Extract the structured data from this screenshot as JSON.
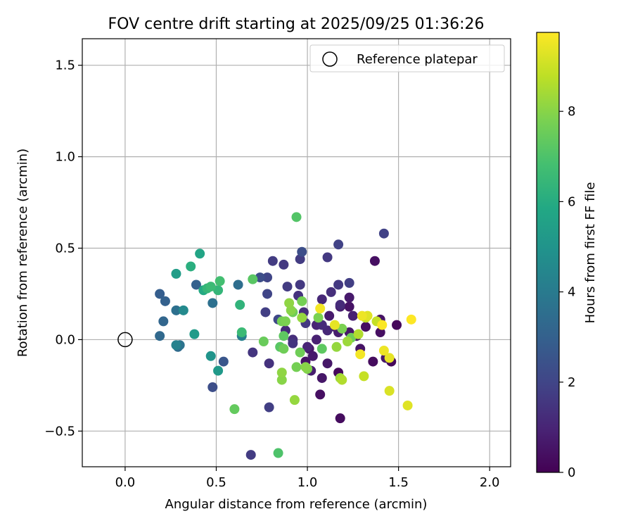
{
  "chart_data": {
    "type": "scatter",
    "title": "FOV centre drift starting at 2025/09/25 01:36:26",
    "xlabel": "Angular distance from reference (arcmin)",
    "ylabel": "Rotation from reference (arcmin)",
    "xlim": [
      -0.235,
      2.115
    ],
    "ylim": [
      -0.695,
      1.645
    ],
    "xticks": [
      0.0,
      0.5,
      1.0,
      1.5,
      2.0
    ],
    "xtick_labels": [
      "0.0",
      "0.5",
      "1.0",
      "1.5",
      "2.0"
    ],
    "yticks": [
      -0.5,
      0.0,
      0.5,
      1.0,
      1.5
    ],
    "ytick_labels": [
      "−0.5",
      "0.0",
      "0.5",
      "1.0",
      "1.5"
    ],
    "grid": true,
    "legend": {
      "location": "top-right",
      "entries": [
        {
          "label": "Reference platepar",
          "marker": "open-circle"
        }
      ]
    },
    "reference_point": {
      "x": 0.0,
      "y": 0.0
    },
    "colorbar": {
      "label": "Hours from first FF file",
      "colormap": "viridis",
      "min": 0,
      "max": 9.75,
      "ticks": [
        0,
        2,
        4,
        6,
        8
      ],
      "tick_labels": [
        "0",
        "2",
        "4",
        "6",
        "8"
      ]
    },
    "points": [
      {
        "x": 1.49,
        "y": 0.08,
        "h": 0.2
      },
      {
        "x": 1.46,
        "y": -0.12,
        "h": 0.2
      },
      {
        "x": 1.4,
        "y": 0.04,
        "h": 0.4
      },
      {
        "x": 1.36,
        "y": -0.12,
        "h": 0.3
      },
      {
        "x": 1.37,
        "y": 0.43,
        "h": 0.4
      },
      {
        "x": 1.18,
        "y": -0.43,
        "h": 0.3
      },
      {
        "x": 1.17,
        "y": -0.18,
        "h": 0.2
      },
      {
        "x": 1.11,
        "y": -0.13,
        "h": 0.6
      },
      {
        "x": 1.07,
        "y": -0.3,
        "h": 0.4
      },
      {
        "x": 1.08,
        "y": -0.21,
        "h": 0.6
      },
      {
        "x": 1.12,
        "y": 0.13,
        "h": 0.7
      },
      {
        "x": 1.17,
        "y": 0.04,
        "h": 0.8
      },
      {
        "x": 1.23,
        "y": 0.18,
        "h": 0.5
      },
      {
        "x": 1.23,
        "y": 0.23,
        "h": 0.7
      },
      {
        "x": 1.18,
        "y": 0.18,
        "h": 0.8
      },
      {
        "x": 1.25,
        "y": 0.13,
        "h": 0.9
      },
      {
        "x": 1.29,
        "y": -0.05,
        "h": 0.5
      },
      {
        "x": 1.32,
        "y": 0.07,
        "h": 0.4
      },
      {
        "x": 1.4,
        "y": 0.11,
        "h": 0.5
      },
      {
        "x": 1.27,
        "y": 0.02,
        "h": 0.6
      },
      {
        "x": 1.43,
        "y": -0.1,
        "h": 0.6
      },
      {
        "x": 1.23,
        "y": 0.04,
        "h": 0.6
      },
      {
        "x": 1.15,
        "y": 0.07,
        "h": 0.7
      },
      {
        "x": 0.99,
        "y": -0.12,
        "h": 0.5
      },
      {
        "x": 1.03,
        "y": -0.09,
        "h": 0.7
      },
      {
        "x": 1.01,
        "y": -0.05,
        "h": 0.6
      },
      {
        "x": 1.02,
        "y": -0.17,
        "h": 0.8
      },
      {
        "x": 1.05,
        "y": 0.0,
        "h": 0.9
      },
      {
        "x": 1.0,
        "y": -0.04,
        "h": 1.0
      },
      {
        "x": 1.05,
        "y": 0.08,
        "h": 1.0
      },
      {
        "x": 1.08,
        "y": 0.08,
        "h": 1.2
      },
      {
        "x": 1.11,
        "y": 0.05,
        "h": 1.1
      },
      {
        "x": 1.18,
        "y": 0.19,
        "h": 1.2
      },
      {
        "x": 1.13,
        "y": 0.26,
        "h": 1.3
      },
      {
        "x": 1.08,
        "y": 0.22,
        "h": 1.1
      },
      {
        "x": 0.98,
        "y": 0.15,
        "h": 1.3
      },
      {
        "x": 0.95,
        "y": 0.24,
        "h": 1.4
      },
      {
        "x": 0.92,
        "y": 0.0,
        "h": 1.3
      },
      {
        "x": 0.88,
        "y": 0.05,
        "h": 1.2
      },
      {
        "x": 0.92,
        "y": -0.02,
        "h": 1.5
      },
      {
        "x": 0.99,
        "y": 0.09,
        "h": 1.6
      },
      {
        "x": 0.96,
        "y": 0.44,
        "h": 1.7
      },
      {
        "x": 1.17,
        "y": 0.3,
        "h": 1.6
      },
      {
        "x": 1.23,
        "y": 0.31,
        "h": 1.8
      },
      {
        "x": 1.11,
        "y": 0.45,
        "h": 1.6
      },
      {
        "x": 1.17,
        "y": 0.52,
        "h": 1.9
      },
      {
        "x": 1.42,
        "y": 0.58,
        "h": 1.9
      },
      {
        "x": 0.96,
        "y": 0.3,
        "h": 1.6
      },
      {
        "x": 0.89,
        "y": 0.29,
        "h": 1.7
      },
      {
        "x": 0.87,
        "y": 0.41,
        "h": 1.6
      },
      {
        "x": 0.81,
        "y": 0.43,
        "h": 1.7
      },
      {
        "x": 0.78,
        "y": 0.34,
        "h": 2.0
      },
      {
        "x": 0.74,
        "y": 0.34,
        "h": 2.3
      },
      {
        "x": 0.78,
        "y": 0.25,
        "h": 2.0
      },
      {
        "x": 0.77,
        "y": 0.15,
        "h": 1.8
      },
      {
        "x": 0.84,
        "y": 0.11,
        "h": 2.1
      },
      {
        "x": 0.7,
        "y": -0.07,
        "h": 1.5
      },
      {
        "x": 0.79,
        "y": -0.13,
        "h": 1.4
      },
      {
        "x": 0.79,
        "y": -0.37,
        "h": 1.8
      },
      {
        "x": 0.69,
        "y": -0.63,
        "h": 1.7
      },
      {
        "x": 0.48,
        "y": -0.26,
        "h": 2.3
      },
      {
        "x": 0.54,
        "y": -0.12,
        "h": 2.6
      },
      {
        "x": 0.97,
        "y": 0.48,
        "h": 2.3
      },
      {
        "x": 0.39,
        "y": 0.3,
        "h": 3.0
      },
      {
        "x": 0.19,
        "y": 0.25,
        "h": 2.9
      },
      {
        "x": 0.22,
        "y": 0.21,
        "h": 3.0
      },
      {
        "x": 0.21,
        "y": 0.1,
        "h": 3.2
      },
      {
        "x": 0.19,
        "y": 0.02,
        "h": 3.3
      },
      {
        "x": 0.28,
        "y": 0.16,
        "h": 3.6
      },
      {
        "x": 0.29,
        "y": -0.04,
        "h": 3.4
      },
      {
        "x": 0.3,
        "y": -0.03,
        "h": 3.7
      },
      {
        "x": 0.28,
        "y": -0.03,
        "h": 4.3
      },
      {
        "x": 0.48,
        "y": 0.2,
        "h": 3.6
      },
      {
        "x": 0.62,
        "y": 0.3,
        "h": 3.5
      },
      {
        "x": 0.64,
        "y": 0.02,
        "h": 4.2
      },
      {
        "x": 0.32,
        "y": 0.16,
        "h": 4.6
      },
      {
        "x": 0.38,
        "y": 0.03,
        "h": 5.3
      },
      {
        "x": 0.28,
        "y": 0.36,
        "h": 5.4
      },
      {
        "x": 0.41,
        "y": 0.47,
        "h": 5.7
      },
      {
        "x": 0.47,
        "y": -0.09,
        "h": 5.0
      },
      {
        "x": 0.51,
        "y": -0.17,
        "h": 5.2
      },
      {
        "x": 0.36,
        "y": 0.4,
        "h": 6.1
      },
      {
        "x": 0.43,
        "y": 0.27,
        "h": 5.9
      },
      {
        "x": 0.45,
        "y": 0.28,
        "h": 6.4
      },
      {
        "x": 0.47,
        "y": 0.29,
        "h": 6.6
      },
      {
        "x": 0.51,
        "y": 0.27,
        "h": 6.4
      },
      {
        "x": 0.52,
        "y": 0.32,
        "h": 6.8
      },
      {
        "x": 0.63,
        "y": 0.19,
        "h": 6.3
      },
      {
        "x": 0.64,
        "y": 0.04,
        "h": 6.6
      },
      {
        "x": 0.7,
        "y": 0.33,
        "h": 7.2
      },
      {
        "x": 0.6,
        "y": -0.38,
        "h": 7.4
      },
      {
        "x": 0.76,
        "y": -0.01,
        "h": 7.5
      },
      {
        "x": 0.84,
        "y": -0.62,
        "h": 7.0
      },
      {
        "x": 0.94,
        "y": 0.67,
        "h": 7.1
      },
      {
        "x": 0.85,
        "y": -0.04,
        "h": 7.2
      },
      {
        "x": 0.87,
        "y": -0.05,
        "h": 7.6
      },
      {
        "x": 0.87,
        "y": 0.02,
        "h": 7.3
      },
      {
        "x": 0.86,
        "y": 0.1,
        "h": 7.7
      },
      {
        "x": 0.88,
        "y": 0.1,
        "h": 7.8
      },
      {
        "x": 0.91,
        "y": 0.16,
        "h": 8.0
      },
      {
        "x": 0.92,
        "y": 0.15,
        "h": 7.6
      },
      {
        "x": 0.9,
        "y": 0.2,
        "h": 8.1
      },
      {
        "x": 0.97,
        "y": 0.21,
        "h": 7.7
      },
      {
        "x": 0.97,
        "y": 0.12,
        "h": 8.2
      },
      {
        "x": 0.96,
        "y": -0.07,
        "h": 7.6
      },
      {
        "x": 0.94,
        "y": -0.15,
        "h": 7.7
      },
      {
        "x": 0.99,
        "y": -0.15,
        "h": 8.0
      },
      {
        "x": 1.0,
        "y": -0.16,
        "h": 7.9
      },
      {
        "x": 0.86,
        "y": -0.18,
        "h": 8.1
      },
      {
        "x": 0.86,
        "y": -0.22,
        "h": 8.0
      },
      {
        "x": 0.93,
        "y": -0.33,
        "h": 8.2
      },
      {
        "x": 1.08,
        "y": -0.05,
        "h": 7.3
      },
      {
        "x": 1.06,
        "y": 0.12,
        "h": 7.8
      },
      {
        "x": 1.16,
        "y": -0.04,
        "h": 8.2
      },
      {
        "x": 1.19,
        "y": 0.06,
        "h": 7.8
      },
      {
        "x": 1.22,
        "y": -0.01,
        "h": 8.3
      },
      {
        "x": 1.24,
        "y": 0.01,
        "h": 7.6
      },
      {
        "x": 1.18,
        "y": -0.21,
        "h": 8.3
      },
      {
        "x": 1.19,
        "y": -0.22,
        "h": 8.6
      },
      {
        "x": 1.31,
        "y": -0.2,
        "h": 8.9
      },
      {
        "x": 1.28,
        "y": 0.03,
        "h": 8.6
      },
      {
        "x": 1.32,
        "y": 0.12,
        "h": 8.8
      },
      {
        "x": 1.38,
        "y": 0.1,
        "h": 8.9
      },
      {
        "x": 1.45,
        "y": -0.28,
        "h": 9.2
      },
      {
        "x": 1.55,
        "y": -0.36,
        "h": 9.3
      },
      {
        "x": 1.45,
        "y": -0.1,
        "h": 9.4
      },
      {
        "x": 1.07,
        "y": 0.17,
        "h": 9.6
      },
      {
        "x": 1.15,
        "y": 0.08,
        "h": 9.4
      },
      {
        "x": 1.3,
        "y": 0.13,
        "h": 9.5
      },
      {
        "x": 1.33,
        "y": 0.13,
        "h": 9.3
      },
      {
        "x": 1.29,
        "y": -0.08,
        "h": 9.6
      },
      {
        "x": 1.42,
        "y": -0.06,
        "h": 9.5
      },
      {
        "x": 1.41,
        "y": 0.08,
        "h": 9.7
      },
      {
        "x": 1.57,
        "y": 0.11,
        "h": 9.75
      }
    ]
  }
}
